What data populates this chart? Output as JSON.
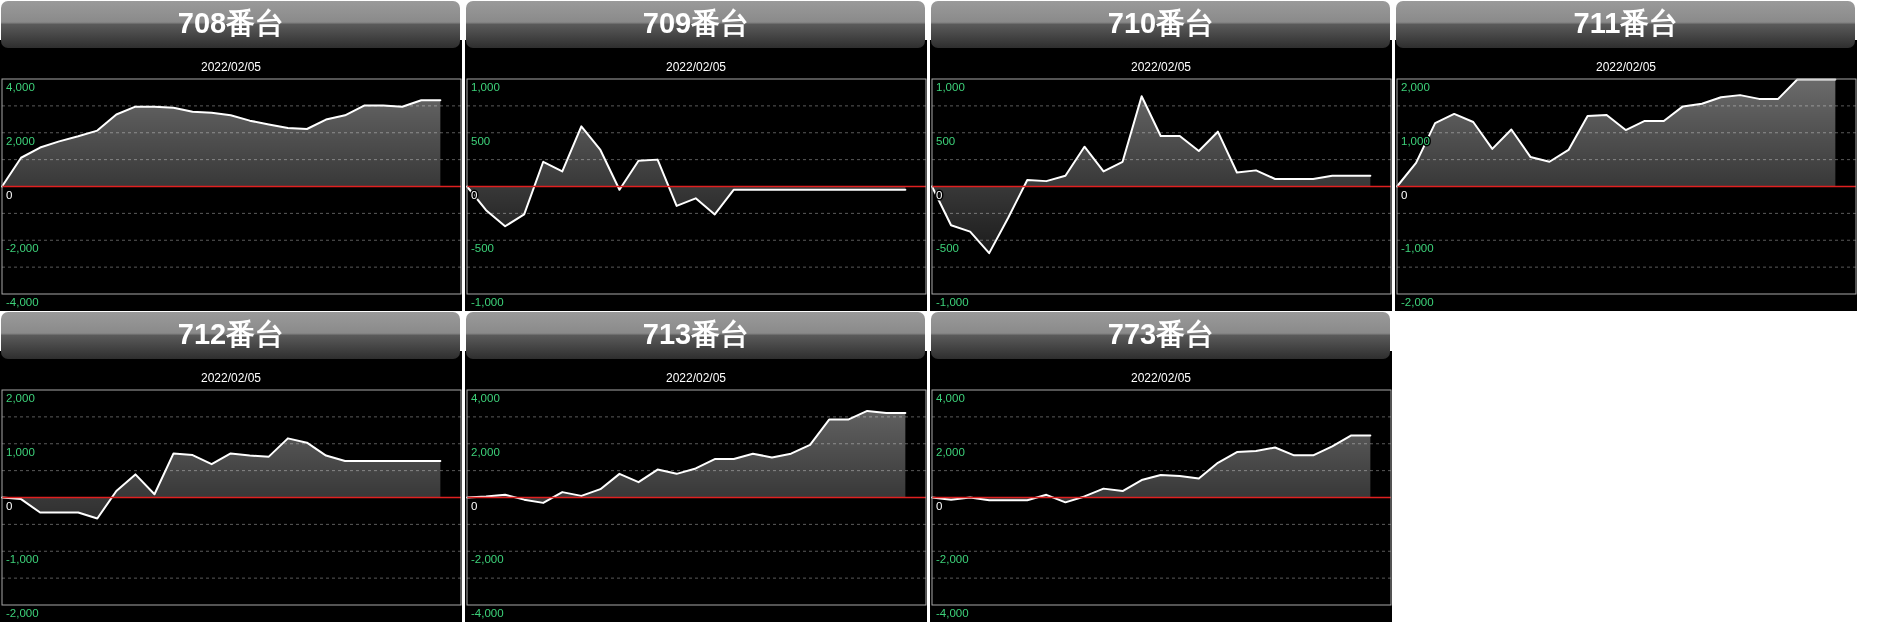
{
  "chart_data": [
    {
      "type": "area",
      "title": "708番台",
      "subtitle": "2022/02/05",
      "categories": [
        null,
        null,
        null,
        null,
        null,
        null,
        null,
        null,
        null,
        null,
        null,
        null,
        null,
        null,
        null,
        null,
        null,
        null,
        null,
        null,
        null,
        null,
        null,
        null
      ],
      "color": "#ffffff",
      "values": [
        0,
        1070,
        1450,
        1680,
        1870,
        2080,
        2680,
        2970,
        2970,
        2930,
        2780,
        2740,
        2650,
        2450,
        2310,
        2180,
        2140,
        2490,
        2650,
        3010,
        3010,
        2970,
        3210,
        3210
      ],
      "ylim": [
        -4000,
        4000
      ],
      "yticks": [
        {
          "value": 4000,
          "label": "4,000"
        },
        {
          "value": 3000,
          "label": null
        },
        {
          "value": 2000,
          "label": "2,000"
        },
        {
          "value": 1000,
          "label": null
        },
        {
          "value": 0,
          "label": "0"
        },
        {
          "value": -1000,
          "label": null
        },
        {
          "value": -2000,
          "label": "-2,000"
        },
        {
          "value": -3000,
          "label": null
        },
        {
          "value": -4000,
          "label": "-4,000"
        }
      ],
      "grid": "y",
      "ref_lines": [
        {
          "axis": "y",
          "value": 0,
          "color": "#e02020"
        }
      ]
    },
    {
      "type": "area",
      "title": "709番台",
      "subtitle": "2022/02/05",
      "categories": [
        null,
        null,
        null,
        null,
        null,
        null,
        null,
        null,
        null,
        null,
        null,
        null,
        null,
        null,
        null,
        null,
        null,
        null,
        null,
        null,
        null,
        null,
        null,
        null
      ],
      "color": "#ffffff",
      "values": [
        0,
        -220,
        -370,
        -260,
        230,
        140,
        560,
        340,
        -30,
        240,
        250,
        -180,
        -110,
        -260,
        -30,
        -30,
        -30,
        -30,
        -30,
        -30,
        -30,
        -30,
        -30,
        -30
      ],
      "ylim": [
        -1000,
        1000
      ],
      "yticks": [
        {
          "value": 1000,
          "label": "1,000"
        },
        {
          "value": 750,
          "label": null
        },
        {
          "value": 500,
          "label": "500"
        },
        {
          "value": 250,
          "label": null
        },
        {
          "value": 0,
          "label": "0"
        },
        {
          "value": -250,
          "label": null
        },
        {
          "value": -500,
          "label": "-500"
        },
        {
          "value": -750,
          "label": null
        },
        {
          "value": -1000,
          "label": "-1,000"
        }
      ],
      "grid": "y",
      "ref_lines": [
        {
          "axis": "y",
          "value": 0,
          "color": "#e02020"
        }
      ]
    },
    {
      "type": "area",
      "title": "710番台",
      "subtitle": "2022/02/05",
      "categories": [
        null,
        null,
        null,
        null,
        null,
        null,
        null,
        null,
        null,
        null,
        null,
        null,
        null,
        null,
        null,
        null,
        null,
        null,
        null,
        null,
        null,
        null,
        null,
        null
      ],
      "color": "#ffffff",
      "values": [
        0,
        -360,
        -420,
        -620,
        -290,
        60,
        50,
        100,
        370,
        140,
        230,
        840,
        470,
        470,
        330,
        510,
        130,
        150,
        70,
        70,
        70,
        100,
        100,
        100
      ],
      "ylim": [
        -1000,
        1000
      ],
      "yticks": [
        {
          "value": 1000,
          "label": "1,000"
        },
        {
          "value": 750,
          "label": null
        },
        {
          "value": 500,
          "label": "500"
        },
        {
          "value": 250,
          "label": null
        },
        {
          "value": 0,
          "label": "0"
        },
        {
          "value": -250,
          "label": null
        },
        {
          "value": -500,
          "label": "-500"
        },
        {
          "value": -750,
          "label": null
        },
        {
          "value": -1000,
          "label": "-1,000"
        }
      ],
      "grid": "y",
      "ref_lines": [
        {
          "axis": "y",
          "value": 0,
          "color": "#e02020"
        }
      ]
    },
    {
      "type": "area",
      "title": "711番台",
      "subtitle": "2022/02/05",
      "categories": [
        null,
        null,
        null,
        null,
        null,
        null,
        null,
        null,
        null,
        null,
        null,
        null,
        null,
        null,
        null,
        null,
        null,
        null,
        null,
        null,
        null,
        null,
        null,
        null
      ],
      "color": "#ffffff",
      "values": [
        0,
        440,
        1180,
        1350,
        1200,
        700,
        1060,
        550,
        460,
        680,
        1310,
        1330,
        1050,
        1220,
        1220,
        1490,
        1540,
        1660,
        1700,
        1630,
        1630,
        1990,
        1990,
        1990
      ],
      "ylim": [
        -2000,
        2000
      ],
      "yticks": [
        {
          "value": 2000,
          "label": "2,000"
        },
        {
          "value": 1500,
          "label": null
        },
        {
          "value": 1000,
          "label": "1,000"
        },
        {
          "value": 500,
          "label": null
        },
        {
          "value": 0,
          "label": "0"
        },
        {
          "value": -500,
          "label": null
        },
        {
          "value": -1000,
          "label": "-1,000"
        },
        {
          "value": -1500,
          "label": null
        },
        {
          "value": -2000,
          "label": "-2,000"
        }
      ],
      "grid": "y",
      "ref_lines": [
        {
          "axis": "y",
          "value": 0,
          "color": "#e02020"
        }
      ]
    },
    {
      "type": "area",
      "title": "712番台",
      "subtitle": "2022/02/05",
      "categories": [
        null,
        null,
        null,
        null,
        null,
        null,
        null,
        null,
        null,
        null,
        null,
        null,
        null,
        null,
        null,
        null,
        null,
        null,
        null,
        null,
        null,
        null,
        null,
        null
      ],
      "color": "#ffffff",
      "values": [
        0,
        -30,
        -280,
        -280,
        -280,
        -390,
        120,
        430,
        60,
        820,
        790,
        620,
        820,
        780,
        760,
        1100,
        1020,
        780,
        680,
        680,
        680,
        680,
        680,
        680
      ],
      "ylim": [
        -2000,
        2000
      ],
      "yticks": [
        {
          "value": 2000,
          "label": "2,000"
        },
        {
          "value": 1500,
          "label": null
        },
        {
          "value": 1000,
          "label": "1,000"
        },
        {
          "value": 500,
          "label": null
        },
        {
          "value": 0,
          "label": "0"
        },
        {
          "value": -500,
          "label": null
        },
        {
          "value": -1000,
          "label": "-1,000"
        },
        {
          "value": -1500,
          "label": null
        },
        {
          "value": -2000,
          "label": "-2,000"
        }
      ],
      "grid": "y",
      "ref_lines": [
        {
          "axis": "y",
          "value": 0,
          "color": "#e02020"
        }
      ]
    },
    {
      "type": "area",
      "title": "713番台",
      "subtitle": "2022/02/05",
      "categories": [
        null,
        null,
        null,
        null,
        null,
        null,
        null,
        null,
        null,
        null,
        null,
        null,
        null,
        null,
        null,
        null,
        null,
        null,
        null,
        null,
        null,
        null,
        null,
        null
      ],
      "color": "#ffffff",
      "values": [
        0,
        40,
        100,
        -80,
        -200,
        200,
        60,
        310,
        880,
        570,
        1040,
        880,
        1080,
        1430,
        1430,
        1630,
        1490,
        1630,
        1960,
        2900,
        2900,
        3220,
        3140,
        3140
      ],
      "ylim": [
        -4000,
        4000
      ],
      "yticks": [
        {
          "value": 4000,
          "label": "4,000"
        },
        {
          "value": 3000,
          "label": null
        },
        {
          "value": 2000,
          "label": "2,000"
        },
        {
          "value": 1000,
          "label": null
        },
        {
          "value": 0,
          "label": "0"
        },
        {
          "value": -1000,
          "label": null
        },
        {
          "value": -2000,
          "label": "-2,000"
        },
        {
          "value": -3000,
          "label": null
        },
        {
          "value": -4000,
          "label": "-4,000"
        }
      ],
      "grid": "y",
      "ref_lines": [
        {
          "axis": "y",
          "value": 0,
          "color": "#e02020"
        }
      ]
    },
    {
      "type": "area",
      "title": "773番台",
      "subtitle": "2022/02/05",
      "categories": [
        null,
        null,
        null,
        null,
        null,
        null,
        null,
        null,
        null,
        null,
        null,
        null,
        null,
        null,
        null,
        null,
        null,
        null,
        null,
        null,
        null,
        null,
        null,
        null
      ],
      "color": "#ffffff",
      "values": [
        0,
        -80,
        0,
        -100,
        -100,
        -100,
        100,
        -180,
        40,
        330,
        240,
        650,
        840,
        800,
        710,
        1290,
        1690,
        1730,
        1860,
        1570,
        1570,
        1900,
        2310,
        2310
      ],
      "ylim": [
        -4000,
        4000
      ],
      "yticks": [
        {
          "value": 4000,
          "label": "4,000"
        },
        {
          "value": 3000,
          "label": null
        },
        {
          "value": 2000,
          "label": "2,000"
        },
        {
          "value": 1000,
          "label": null
        },
        {
          "value": 0,
          "label": "0"
        },
        {
          "value": -1000,
          "label": null
        },
        {
          "value": -2000,
          "label": "-2,000"
        },
        {
          "value": -3000,
          "label": null
        },
        {
          "value": -4000,
          "label": "-4,000"
        }
      ],
      "grid": "y",
      "ref_lines": [
        {
          "axis": "y",
          "value": 0,
          "color": "#e02020"
        }
      ]
    }
  ]
}
